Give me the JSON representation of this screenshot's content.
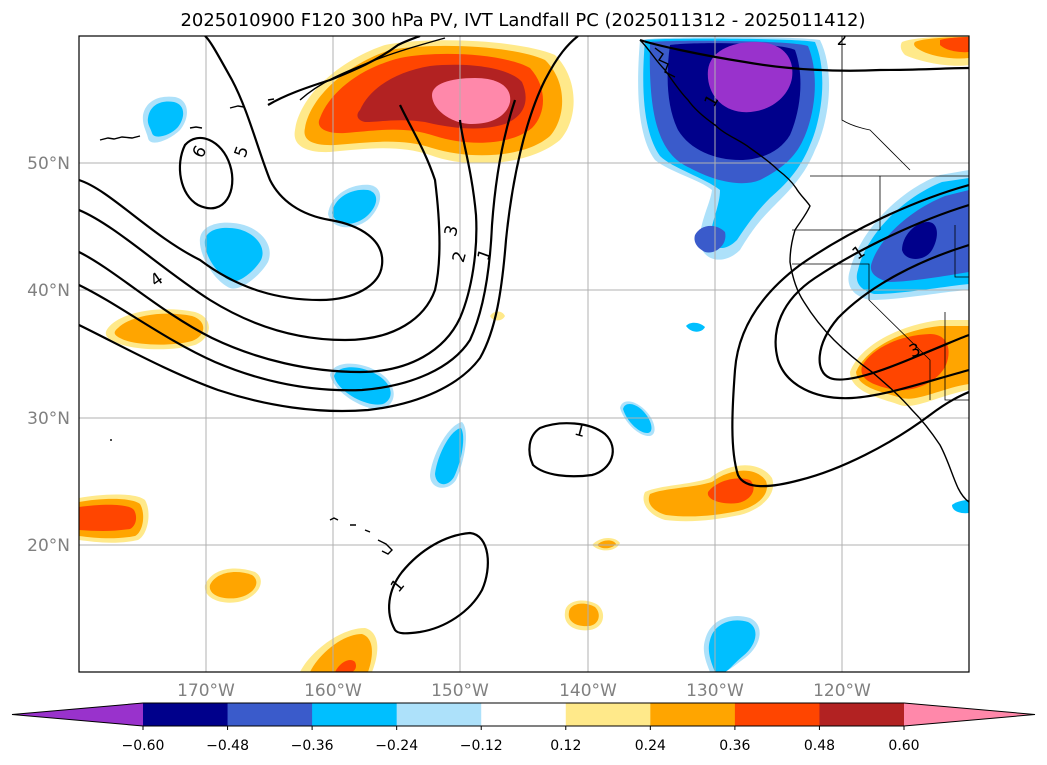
{
  "title": "2025010900 F120 300 hPa PV, IVT Landfall PC (2025011312 - 2025011412)",
  "map": {
    "lat_labels": [
      "50°N",
      "40°N",
      "30°N",
      "20°N"
    ],
    "lon_labels": [
      "170°W",
      "160°W",
      "150°W",
      "140°W",
      "130°W",
      "120°W"
    ],
    "contour_labels": [
      "6",
      "5",
      "4",
      "3",
      "2",
      "1",
      "1",
      "1",
      "1",
      "2",
      "3",
      "1"
    ]
  },
  "colorbar": {
    "ticks": [
      "−0.60",
      "−0.48",
      "−0.36",
      "−0.24",
      "−0.12",
      "0.12",
      "0.24",
      "0.36",
      "0.48",
      "0.60"
    ],
    "colors": [
      "#9932CC",
      "#00008B",
      "#3A5BCB",
      "#00BFFF",
      "#ADE1FA",
      "#FFFFFF",
      "#FFE98A",
      "#FFA500",
      "#FF4500",
      "#B22222",
      "#FF88AA"
    ]
  }
}
